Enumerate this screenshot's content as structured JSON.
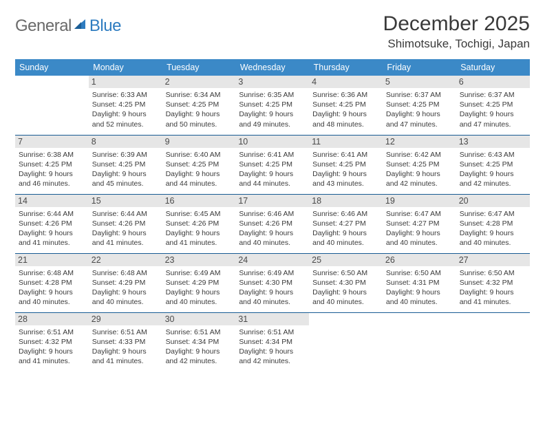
{
  "brand": {
    "part1": "General",
    "part2": "Blue"
  },
  "title": "December 2025",
  "location": "Shimotsuke, Tochigi, Japan",
  "colors": {
    "header_bg": "#3b89c7",
    "header_text": "#ffffff",
    "daynum_bg": "#e6e6e6",
    "rule": "#165a93",
    "logo_gray": "#6a6a6a",
    "logo_blue": "#2e7cc0",
    "body_text": "#3a3a3a",
    "page_bg": "#ffffff"
  },
  "weekdays": [
    "Sunday",
    "Monday",
    "Tuesday",
    "Wednesday",
    "Thursday",
    "Friday",
    "Saturday"
  ],
  "weeks": [
    [
      null,
      {
        "d": "1",
        "sr": "6:33 AM",
        "ss": "4:25 PM",
        "dl": "9 hours and 52 minutes."
      },
      {
        "d": "2",
        "sr": "6:34 AM",
        "ss": "4:25 PM",
        "dl": "9 hours and 50 minutes."
      },
      {
        "d": "3",
        "sr": "6:35 AM",
        "ss": "4:25 PM",
        "dl": "9 hours and 49 minutes."
      },
      {
        "d": "4",
        "sr": "6:36 AM",
        "ss": "4:25 PM",
        "dl": "9 hours and 48 minutes."
      },
      {
        "d": "5",
        "sr": "6:37 AM",
        "ss": "4:25 PM",
        "dl": "9 hours and 47 minutes."
      },
      {
        "d": "6",
        "sr": "6:37 AM",
        "ss": "4:25 PM",
        "dl": "9 hours and 47 minutes."
      }
    ],
    [
      {
        "d": "7",
        "sr": "6:38 AM",
        "ss": "4:25 PM",
        "dl": "9 hours and 46 minutes."
      },
      {
        "d": "8",
        "sr": "6:39 AM",
        "ss": "4:25 PM",
        "dl": "9 hours and 45 minutes."
      },
      {
        "d": "9",
        "sr": "6:40 AM",
        "ss": "4:25 PM",
        "dl": "9 hours and 44 minutes."
      },
      {
        "d": "10",
        "sr": "6:41 AM",
        "ss": "4:25 PM",
        "dl": "9 hours and 44 minutes."
      },
      {
        "d": "11",
        "sr": "6:41 AM",
        "ss": "4:25 PM",
        "dl": "9 hours and 43 minutes."
      },
      {
        "d": "12",
        "sr": "6:42 AM",
        "ss": "4:25 PM",
        "dl": "9 hours and 42 minutes."
      },
      {
        "d": "13",
        "sr": "6:43 AM",
        "ss": "4:25 PM",
        "dl": "9 hours and 42 minutes."
      }
    ],
    [
      {
        "d": "14",
        "sr": "6:44 AM",
        "ss": "4:26 PM",
        "dl": "9 hours and 41 minutes."
      },
      {
        "d": "15",
        "sr": "6:44 AM",
        "ss": "4:26 PM",
        "dl": "9 hours and 41 minutes."
      },
      {
        "d": "16",
        "sr": "6:45 AM",
        "ss": "4:26 PM",
        "dl": "9 hours and 41 minutes."
      },
      {
        "d": "17",
        "sr": "6:46 AM",
        "ss": "4:26 PM",
        "dl": "9 hours and 40 minutes."
      },
      {
        "d": "18",
        "sr": "6:46 AM",
        "ss": "4:27 PM",
        "dl": "9 hours and 40 minutes."
      },
      {
        "d": "19",
        "sr": "6:47 AM",
        "ss": "4:27 PM",
        "dl": "9 hours and 40 minutes."
      },
      {
        "d": "20",
        "sr": "6:47 AM",
        "ss": "4:28 PM",
        "dl": "9 hours and 40 minutes."
      }
    ],
    [
      {
        "d": "21",
        "sr": "6:48 AM",
        "ss": "4:28 PM",
        "dl": "9 hours and 40 minutes."
      },
      {
        "d": "22",
        "sr": "6:48 AM",
        "ss": "4:29 PM",
        "dl": "9 hours and 40 minutes."
      },
      {
        "d": "23",
        "sr": "6:49 AM",
        "ss": "4:29 PM",
        "dl": "9 hours and 40 minutes."
      },
      {
        "d": "24",
        "sr": "6:49 AM",
        "ss": "4:30 PM",
        "dl": "9 hours and 40 minutes."
      },
      {
        "d": "25",
        "sr": "6:50 AM",
        "ss": "4:30 PM",
        "dl": "9 hours and 40 minutes."
      },
      {
        "d": "26",
        "sr": "6:50 AM",
        "ss": "4:31 PM",
        "dl": "9 hours and 40 minutes."
      },
      {
        "d": "27",
        "sr": "6:50 AM",
        "ss": "4:32 PM",
        "dl": "9 hours and 41 minutes."
      }
    ],
    [
      {
        "d": "28",
        "sr": "6:51 AM",
        "ss": "4:32 PM",
        "dl": "9 hours and 41 minutes."
      },
      {
        "d": "29",
        "sr": "6:51 AM",
        "ss": "4:33 PM",
        "dl": "9 hours and 41 minutes."
      },
      {
        "d": "30",
        "sr": "6:51 AM",
        "ss": "4:34 PM",
        "dl": "9 hours and 42 minutes."
      },
      {
        "d": "31",
        "sr": "6:51 AM",
        "ss": "4:34 PM",
        "dl": "9 hours and 42 minutes."
      },
      null,
      null,
      null
    ]
  ],
  "labels": {
    "sunrise": "Sunrise:",
    "sunset": "Sunset:",
    "daylight": "Daylight:"
  }
}
